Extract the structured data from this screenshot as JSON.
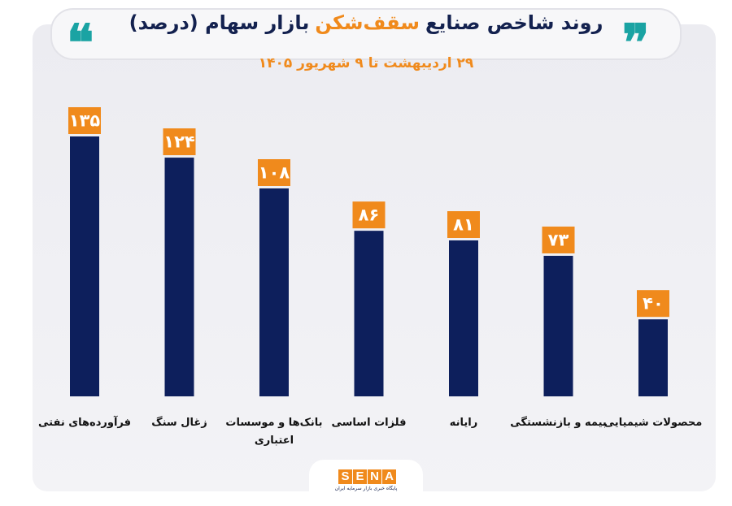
{
  "header": {
    "title_start": "روند شاخص صنایع",
    "title_accent": "سقف‌شکن",
    "title_end": "بازار سهام (درصد)",
    "subtitle": "۲۹ اردیبهشت تا ۹ شهریور ۱۴۰۵",
    "quote_icon": "double-quote-icon"
  },
  "colors": {
    "bar": "#0d1f5c",
    "value_box": "#f08a1c",
    "accent": "#f08a1c",
    "quote": "#1aa3a3",
    "title": "#13214f"
  },
  "chart_data": {
    "type": "bar",
    "title": "روند شاخص صنایع سقف‌شکن بازار سهام (درصد)",
    "subtitle": "۲۹ اردیبهشت تا ۹ شهریور ۱۴۰۵",
    "categories": [
      [
        "فرآورده‌های نفتی"
      ],
      [
        "زغال سنگ"
      ],
      [
        "بانک‌ها و موسسات",
        "اعتباری"
      ],
      [
        "فلزات اساسی"
      ],
      [
        "رایانه"
      ],
      [
        "بیمه و بازنشستگی"
      ],
      [
        "محصولات شیمیایی"
      ]
    ],
    "values": [
      135,
      124,
      108,
      86,
      81,
      73,
      40
    ],
    "value_labels": [
      "۱۳۵",
      "۱۲۴",
      "۱۰۸",
      "۸۶",
      "۸۱",
      "۷۳",
      "۴۰"
    ],
    "ylim": [
      0,
      135
    ],
    "grid": false,
    "legend": "none"
  },
  "logo": {
    "letters": [
      "S",
      "E",
      "N",
      "A"
    ],
    "tagline": "پایگاه خبری بازار سرمایه ایران"
  }
}
